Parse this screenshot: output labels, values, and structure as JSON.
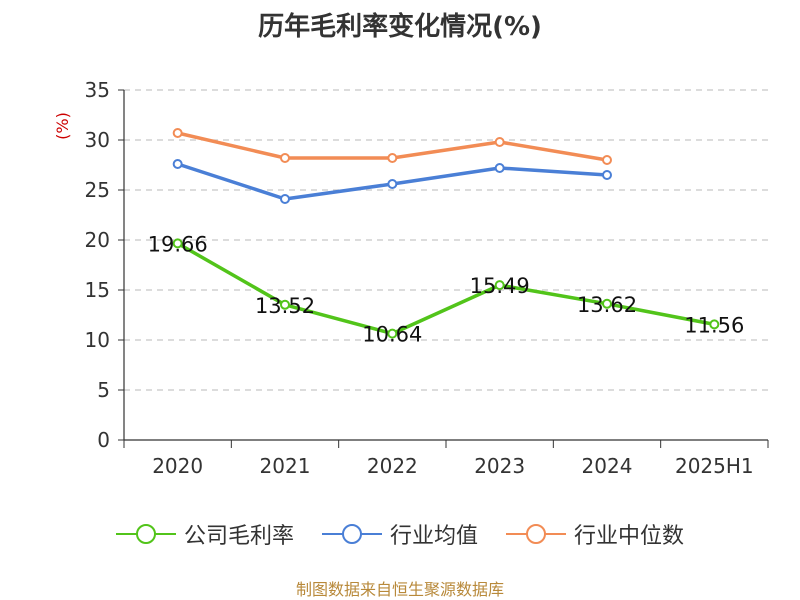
{
  "chart_data": {
    "type": "line",
    "title": "历年毛利率变化情况(%)",
    "ylabel": "(%)",
    "categories": [
      "2020",
      "2021",
      "2022",
      "2023",
      "2024",
      "2025H1"
    ],
    "ylim": [
      0,
      35
    ],
    "yticks": [
      "0",
      "5",
      "10",
      "15",
      "20",
      "25",
      "30",
      "35"
    ],
    "grid": true,
    "legend_position": "bottom",
    "series": [
      {
        "name": "公司毛利率",
        "color": "#52c41a",
        "values": [
          19.66,
          13.52,
          10.64,
          15.49,
          13.62,
          11.56
        ],
        "labels": [
          "19.66",
          "13.52",
          "10.64",
          "15.49",
          "13.62",
          "11.56"
        ]
      },
      {
        "name": "行业均值",
        "color": "#4a7fd6",
        "values": [
          27.6,
          24.1,
          25.6,
          27.2,
          26.5,
          null
        ]
      },
      {
        "name": "行业中位数",
        "color": "#f28c55",
        "values": [
          30.7,
          28.2,
          28.2,
          29.8,
          28.0,
          null
        ]
      }
    ]
  },
  "source_note": "制图数据来自恒生聚源数据库",
  "colors": {
    "axis": "#333333",
    "grid": "#c8c8c8",
    "ylabel": "#cc0000",
    "source": "#b8893a"
  }
}
